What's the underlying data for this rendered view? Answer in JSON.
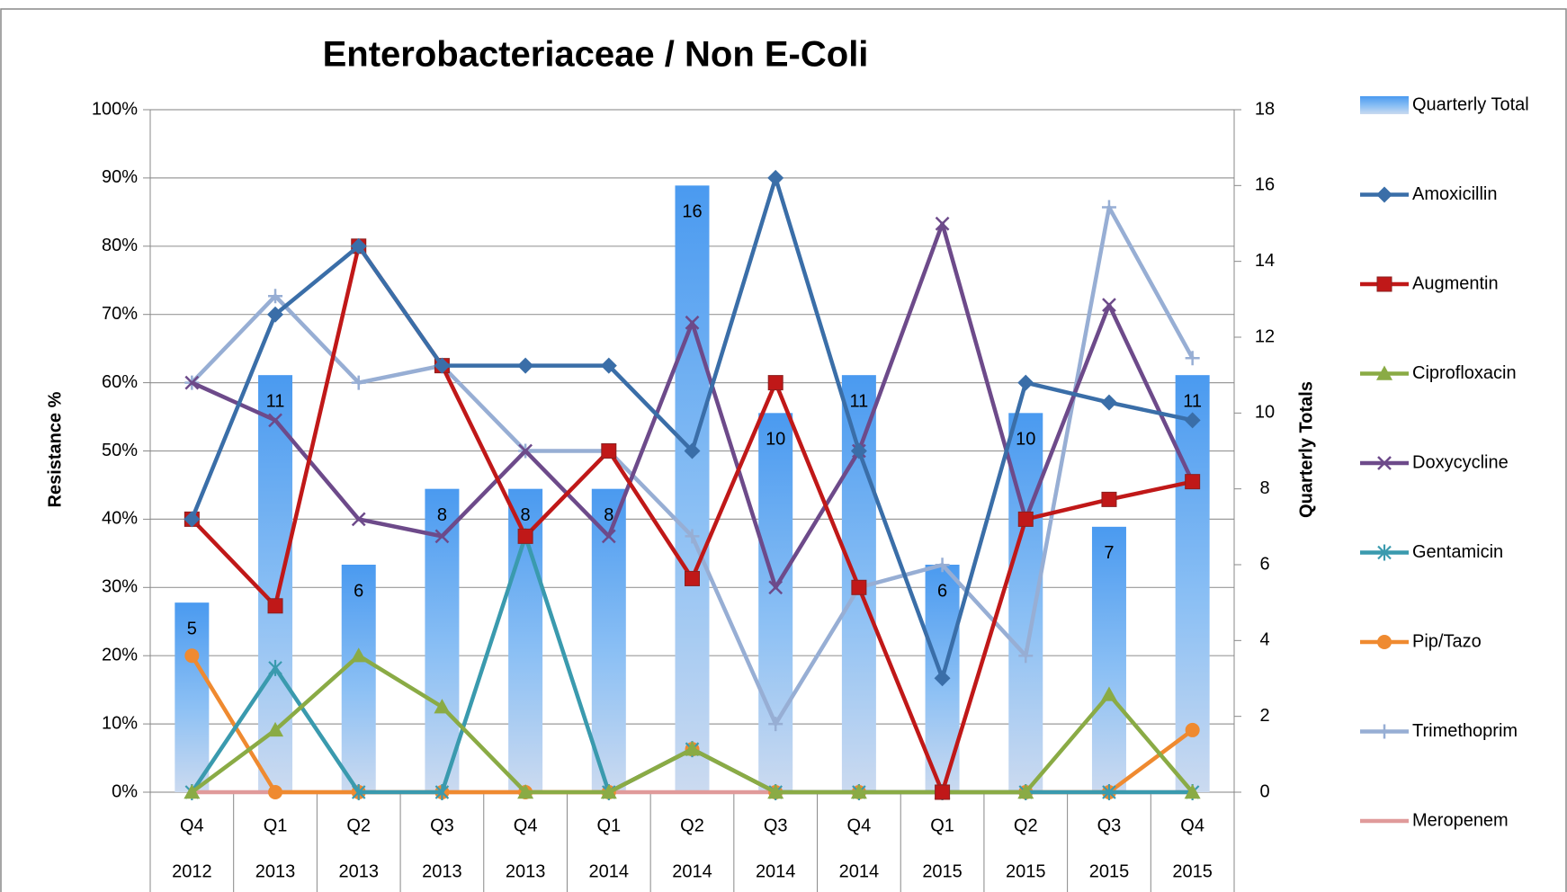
{
  "chart_data": {
    "type": "bar-line",
    "title": "Enterobacteriaceae / Non E-Coli",
    "ylabel": "Resistance %",
    "y2label": "Quarterly Totals",
    "categories": [
      "Q4",
      "Q1",
      "Q2",
      "Q3",
      "Q4",
      "Q1",
      "Q2",
      "Q3",
      "Q4",
      "Q1",
      "Q2",
      "Q3",
      "Q4"
    ],
    "years": [
      "2012",
      "2013",
      "2013",
      "2013",
      "2013",
      "2014",
      "2014",
      "2014",
      "2014",
      "2015",
      "2015",
      "2015",
      "2015"
    ],
    "ylim": [
      0,
      100
    ],
    "yticks": [
      {
        "value": 0,
        "label": "0%"
      },
      {
        "value": 10,
        "label": "10%"
      },
      {
        "value": 20,
        "label": "20%"
      },
      {
        "value": 30,
        "label": "30%"
      },
      {
        "value": 40,
        "label": "40%"
      },
      {
        "value": 50,
        "label": "50%"
      },
      {
        "value": 60,
        "label": "60%"
      },
      {
        "value": 70,
        "label": "70%"
      },
      {
        "value": 80,
        "label": "80%"
      },
      {
        "value": 90,
        "label": "90%"
      },
      {
        "value": 100,
        "label": "100%"
      }
    ],
    "y2lim": [
      0,
      18
    ],
    "y2ticks": [
      0,
      2,
      4,
      6,
      8,
      10,
      12,
      14,
      16,
      18
    ],
    "grid": true,
    "legend": "right",
    "series": [
      {
        "name": "Quarterly Total",
        "type": "bar",
        "axis": "y2",
        "color": "#5aa2f0",
        "values": [
          5,
          11,
          6,
          8,
          8,
          8,
          16,
          10,
          11,
          6,
          10,
          7,
          11
        ]
      },
      {
        "name": "Amoxicillin",
        "type": "line",
        "marker": "diamond",
        "color": "#3a6ea8",
        "values": [
          40,
          70,
          80,
          62.5,
          62.5,
          62.5,
          50,
          90,
          50,
          16.7,
          60,
          57.1,
          54.5
        ]
      },
      {
        "name": "Augmentin",
        "type": "line",
        "marker": "square",
        "color": "#c01818",
        "values": [
          40,
          27.3,
          80,
          62.5,
          37.5,
          50,
          31.3,
          60,
          30,
          0,
          40,
          42.9,
          45.5
        ]
      },
      {
        "name": "Ciprofloxacin",
        "type": "line",
        "marker": "triangle",
        "color": "#8aab45",
        "values": [
          0,
          9.1,
          20,
          12.5,
          0,
          0,
          6.3,
          0,
          0,
          0,
          0,
          14.3,
          0
        ]
      },
      {
        "name": "Doxycycline",
        "type": "line",
        "marker": "x",
        "color": "#6d4a8a",
        "values": [
          60,
          54.5,
          40,
          37.5,
          50,
          37.5,
          68.8,
          30,
          50,
          83.3,
          40,
          71.4,
          45.5
        ]
      },
      {
        "name": "Gentamicin",
        "type": "line",
        "marker": "star",
        "color": "#3a9aae",
        "values": [
          0,
          18.2,
          0,
          0,
          37.5,
          0,
          6.3,
          0,
          0,
          0,
          0,
          0,
          0
        ]
      },
      {
        "name": "Pip/Tazo",
        "type": "line",
        "marker": "circle",
        "color": "#ef8a30",
        "values": [
          20,
          0,
          0,
          0,
          0,
          0,
          6.3,
          0,
          0,
          0,
          0,
          0,
          9.1
        ]
      },
      {
        "name": "Trimethoprim",
        "type": "line",
        "marker": "plus",
        "color": "#97aed4",
        "values": [
          60,
          72.7,
          60,
          62.5,
          50,
          50,
          37.5,
          10,
          30,
          33.3,
          20,
          85.7,
          63.6
        ]
      },
      {
        "name": "Meropenem",
        "type": "line",
        "marker": "none",
        "color": "#e09a9a",
        "values": [
          0,
          0,
          0,
          0,
          0,
          0,
          0,
          0,
          0,
          0,
          0,
          0,
          0
        ]
      }
    ]
  }
}
